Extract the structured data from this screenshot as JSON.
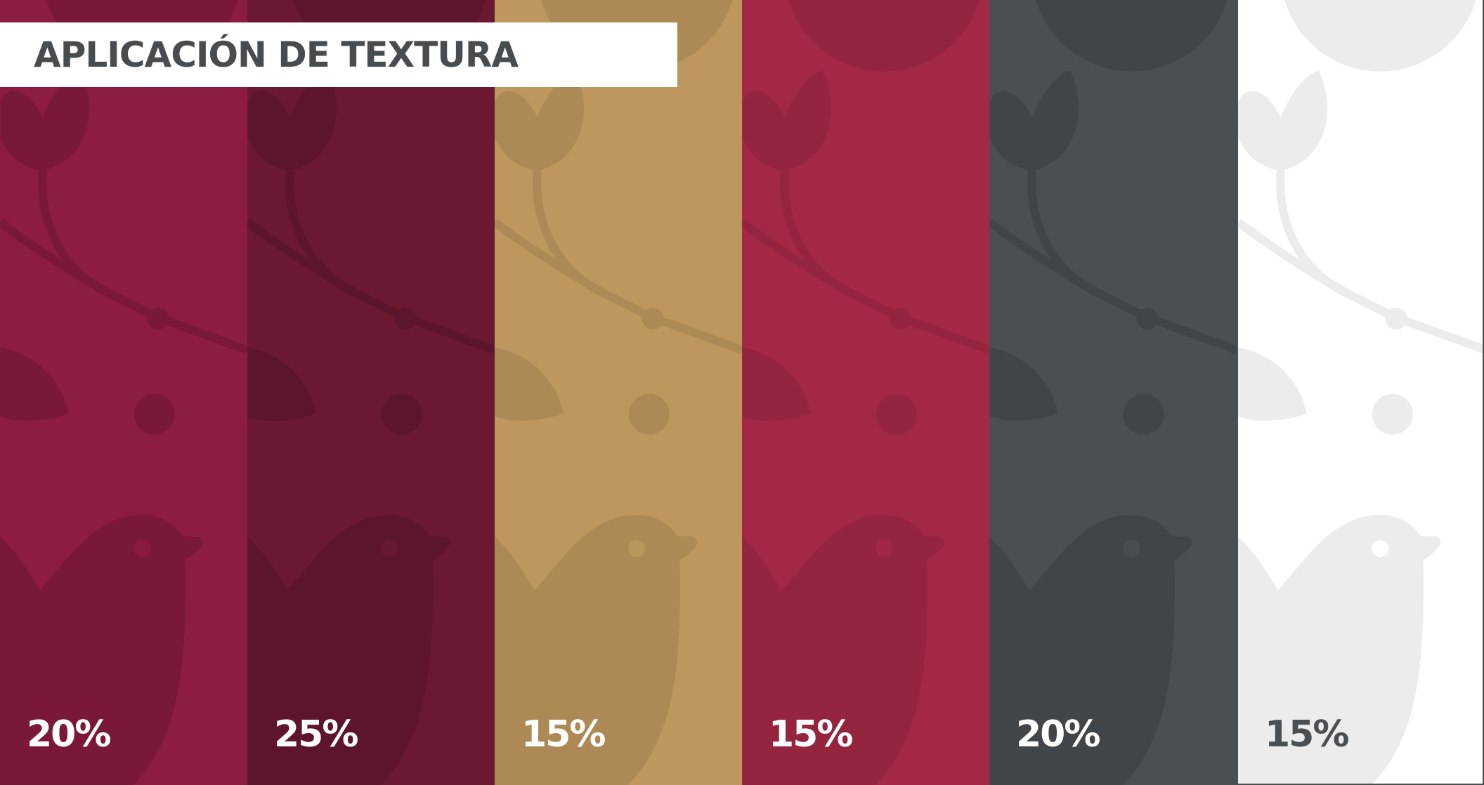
{
  "header": {
    "title": "APLICACIÓN DE TEXTURA"
  },
  "panels": [
    {
      "label": "20%"
    },
    {
      "label": "25%"
    },
    {
      "label": "15%"
    },
    {
      "label": "15%"
    },
    {
      "label": "20%"
    },
    {
      "label": "15%"
    }
  ]
}
